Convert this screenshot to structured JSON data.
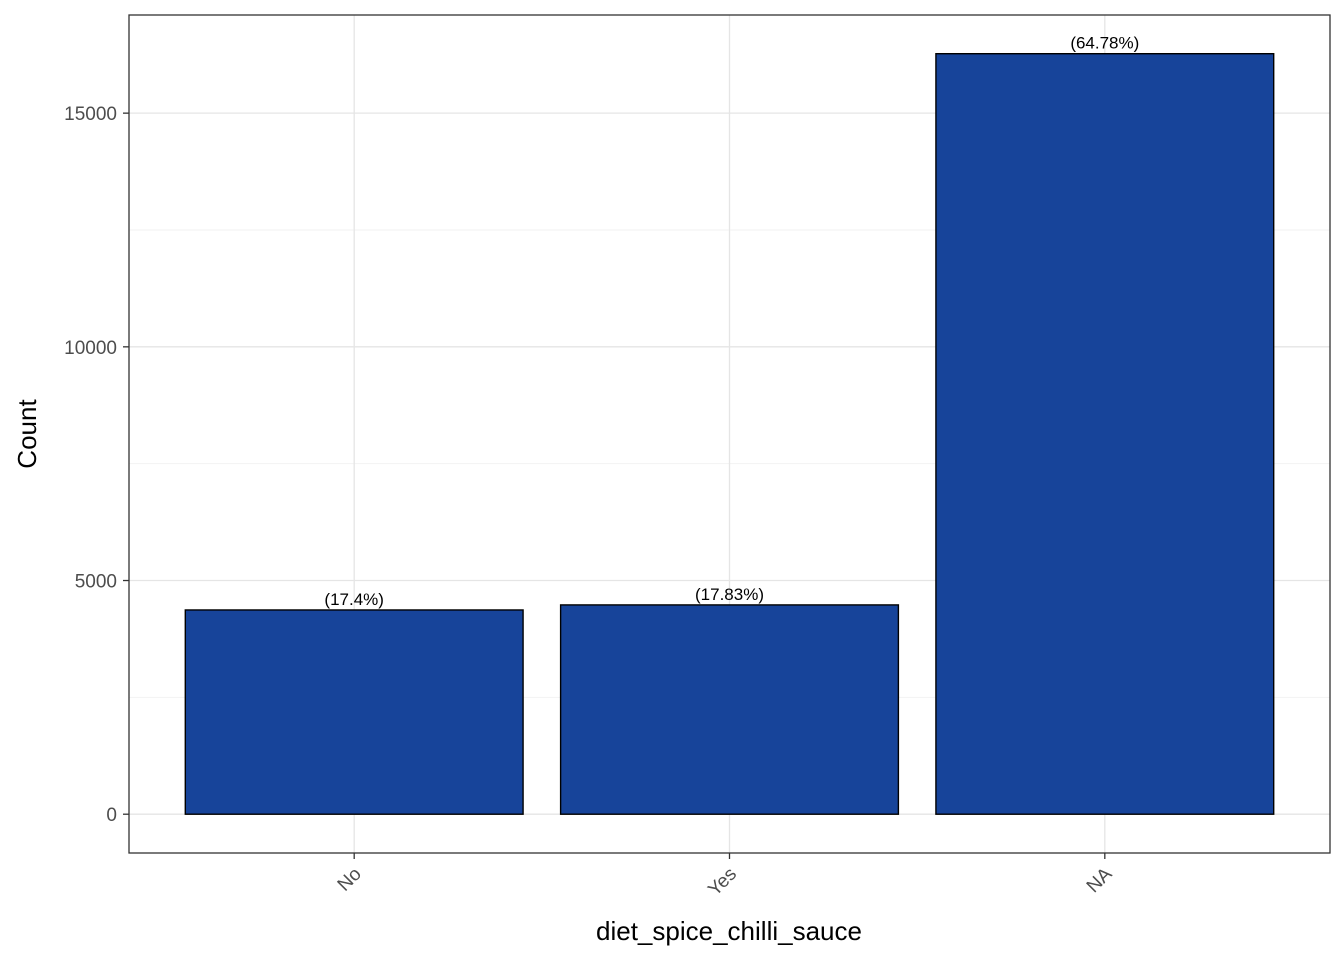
{
  "chart_data": {
    "type": "bar",
    "title": "",
    "xlabel": "diet_spice_chilli_sauce",
    "ylabel": "Count",
    "categories": [
      "No",
      "Yes",
      "NA"
    ],
    "values": [
      4370,
      4478,
      16272
    ],
    "bar_labels": [
      "(17.4%)",
      "(17.83%)",
      "(64.78%)"
    ],
    "ylim": [
      -830,
      17100
    ],
    "yticks": [
      0,
      5000,
      10000,
      15000
    ],
    "ytick_labels": [
      "0",
      "5000",
      "10000",
      "15000"
    ],
    "grid": true,
    "legend": "none",
    "colors": {
      "bar_fill": "#17449A",
      "bar_stroke": "#000000",
      "grid_major": "#e5e5e5",
      "grid_minor": "#f2f2f2",
      "panel_border": "#333333"
    }
  }
}
